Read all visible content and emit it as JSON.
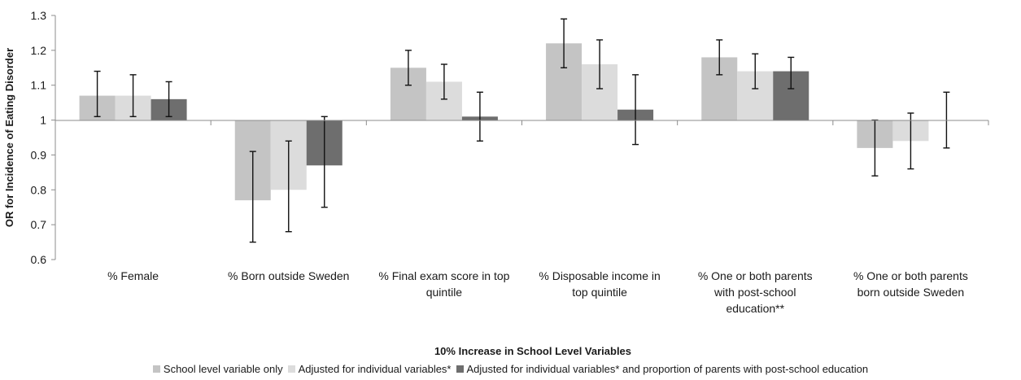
{
  "chart_data": {
    "type": "bar",
    "title": "",
    "xlabel": "10% Increase in School Level Variables",
    "ylabel": "OR for Incidence of Eating Disorder",
    "ylim": [
      0.6,
      1.3
    ],
    "yticks": [
      "0.6",
      "0.7",
      "0.8",
      "0.9",
      "1",
      "1.1",
      "1.2",
      "1.3"
    ],
    "baseline": 1,
    "grid": false,
    "legend_position": "bottom",
    "categories": [
      [
        "% Female"
      ],
      [
        "% Born outside Sweden"
      ],
      [
        "% Final exam score in top",
        "quintile"
      ],
      [
        "% Disposable income in",
        "top quintile"
      ],
      [
        "% One or both parents",
        "with post-school",
        "education**"
      ],
      [
        "% One or both parents",
        "born outside Sweden"
      ]
    ],
    "series": [
      {
        "name": "School level variable only",
        "color": "#c4c4c4",
        "values": [
          1.07,
          0.77,
          1.15,
          1.22,
          1.18,
          0.92
        ],
        "ci_low": [
          1.01,
          0.65,
          1.1,
          1.15,
          1.13,
          0.84
        ],
        "ci_high": [
          1.14,
          0.91,
          1.2,
          1.29,
          1.23,
          1.0
        ]
      },
      {
        "name": "Adjusted for individual variables*",
        "color": "#dcdcdc",
        "values": [
          1.07,
          0.8,
          1.11,
          1.16,
          1.14,
          0.94
        ],
        "ci_low": [
          1.01,
          0.68,
          1.06,
          1.09,
          1.09,
          0.86
        ],
        "ci_high": [
          1.13,
          0.94,
          1.16,
          1.23,
          1.19,
          1.02
        ]
      },
      {
        "name": "Adjusted for individual variables* and proportion of parents with post-school education",
        "color": "#6e6e6e",
        "values": [
          1.06,
          0.87,
          1.01,
          1.03,
          1.14,
          1.0
        ],
        "ci_low": [
          1.01,
          0.75,
          0.94,
          0.93,
          1.09,
          0.92
        ],
        "ci_high": [
          1.11,
          1.01,
          1.08,
          1.13,
          1.18,
          1.08
        ]
      }
    ]
  }
}
